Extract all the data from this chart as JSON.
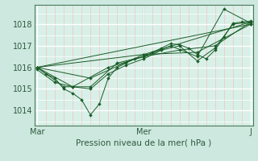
{
  "bg_color": "#cde8df",
  "plot_bg_color": "#d8f0e8",
  "grid_color": "#ffffff",
  "minor_grid_color": "#f5c0c0",
  "line_color": "#1a5c28",
  "marker_color": "#1a5c28",
  "ylabel_ticks": [
    1014,
    1015,
    1016,
    1017,
    1018
  ],
  "xlabel": "Pression niveau de la mer( hPa )",
  "xtick_labels": [
    "Mar",
    "Mer",
    "J"
  ],
  "xtick_positions": [
    0,
    48,
    96
  ],
  "ylim": [
    1013.3,
    1018.9
  ],
  "xlim": [
    -1,
    97
  ],
  "lines": [
    {
      "x": [
        0,
        4,
        8,
        12,
        16,
        20,
        24,
        28,
        32,
        36,
        40,
        44,
        48,
        52,
        56,
        60,
        64,
        68,
        72,
        76,
        80,
        84,
        88,
        92,
        96
      ],
      "y": [
        1016.0,
        1015.7,
        1015.5,
        1015.0,
        1014.8,
        1014.5,
        1013.8,
        1014.3,
        1015.5,
        1016.0,
        1016.2,
        1016.4,
        1016.5,
        1016.7,
        1016.9,
        1017.1,
        1017.05,
        1016.9,
        1016.6,
        1016.4,
        1016.8,
        1017.4,
        1018.05,
        1018.1,
        1018.15
      ]
    },
    {
      "x": [
        0,
        8,
        16,
        24,
        32,
        40,
        48,
        56,
        64,
        72,
        80,
        88,
        96
      ],
      "y": [
        1015.9,
        1015.3,
        1015.1,
        1015.0,
        1015.7,
        1016.1,
        1016.4,
        1016.8,
        1017.0,
        1016.3,
        1016.9,
        1018.0,
        1018.1
      ]
    },
    {
      "x": [
        0,
        12,
        24,
        36,
        48,
        60,
        72,
        84,
        96
      ],
      "y": [
        1016.0,
        1015.1,
        1015.1,
        1016.2,
        1016.5,
        1017.0,
        1016.5,
        1018.7,
        1018.05
      ]
    },
    {
      "x": [
        0,
        16,
        32,
        48,
        64,
        80,
        96
      ],
      "y": [
        1016.0,
        1015.1,
        1016.0,
        1016.5,
        1016.8,
        1017.0,
        1018.1
      ]
    },
    {
      "x": [
        0,
        24,
        48,
        72,
        96
      ],
      "y": [
        1016.0,
        1015.5,
        1016.6,
        1016.7,
        1018.0
      ]
    },
    {
      "x": [
        0,
        48,
        96
      ],
      "y": [
        1016.0,
        1016.6,
        1018.1
      ]
    },
    {
      "x": [
        0,
        96
      ],
      "y": [
        1016.0,
        1018.0
      ]
    }
  ]
}
